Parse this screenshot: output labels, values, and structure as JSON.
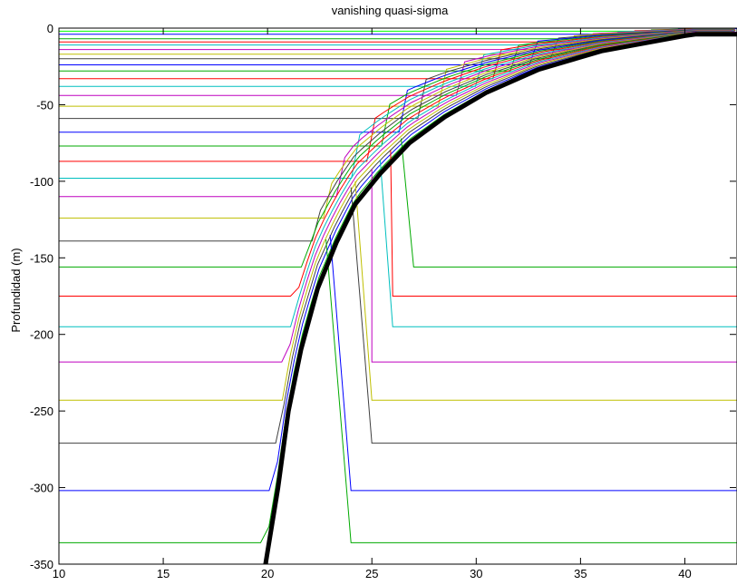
{
  "chart_data": {
    "type": "line",
    "title": "vanishing quasi-sigma",
    "xlabel": "",
    "ylabel": "Profundidad (m)",
    "xlim": [
      10,
      42.5
    ],
    "ylim": [
      -350,
      0
    ],
    "x_ticks": [
      10,
      15,
      20,
      25,
      30,
      35,
      40
    ],
    "y_ticks": [
      0,
      -50,
      -100,
      -150,
      -200,
      -250,
      -300,
      -350
    ],
    "grid": false,
    "bathymetry": {
      "color": "#000000",
      "x": [
        19.9,
        20.5,
        21.0,
        21.6,
        22.4,
        23.3,
        24.2,
        25.4,
        26.8,
        28.5,
        30.5,
        33.0,
        36.0,
        40.0,
        40.5,
        42.5
      ],
      "y": [
        -350,
        -300,
        -250,
        -210,
        -170,
        -140,
        -115,
        -95,
        -75,
        -58,
        -42,
        -27,
        -15,
        -5,
        -4,
        -4
      ]
    },
    "series": [
      {
        "color": "#ff00ff",
        "values": [
          0,
          0,
          -1.5,
          -2,
          -2
        ]
      },
      {
        "color": "#00ff00",
        "values": [
          -2,
          -2,
          -3,
          -3.4,
          -4
        ]
      },
      {
        "color": "#0000ff",
        "values": [
          -4,
          -4,
          -4.6,
          -4.8,
          -4.8
        ]
      },
      {
        "color": "#00aa00",
        "values": [
          -7,
          -7,
          -6.5,
          -6.5,
          -6.5
        ]
      },
      {
        "color": "#ff0000",
        "values": [
          -9,
          -9,
          -8.2,
          -8.2,
          -8.2
        ]
      },
      {
        "color": "#00bfbf",
        "values": [
          -11,
          -11,
          -10,
          -10,
          -10
        ]
      },
      {
        "color": "#bf00bf",
        "values": [
          -14,
          -14,
          -12,
          -12,
          -12
        ]
      },
      {
        "color": "#bfbf00",
        "values": [
          -17,
          -17,
          -14,
          -14,
          -14
        ]
      },
      {
        "color": "#404040",
        "values": [
          -20,
          -20,
          -16,
          -16,
          -16
        ]
      },
      {
        "color": "#0000ff",
        "values": [
          -24,
          -24,
          -18,
          -18,
          -18
        ]
      },
      {
        "color": "#00aa00",
        "values": [
          -28,
          -28,
          -20,
          -20,
          -20
        ]
      },
      {
        "color": "#ff0000",
        "values": [
          -33,
          -33,
          -22,
          -22,
          -22
        ]
      },
      {
        "color": "#00bfbf",
        "values": [
          -38,
          -38,
          -24,
          -24,
          -24
        ]
      },
      {
        "color": "#bf00bf",
        "values": [
          -44,
          -44,
          -26,
          -26,
          -26
        ]
      },
      {
        "color": "#bfbf00",
        "values": [
          -51,
          -51,
          -29,
          -29,
          -29
        ]
      },
      {
        "color": "#404040",
        "values": [
          -59,
          -59,
          -32,
          -32,
          -32
        ]
      },
      {
        "color": "#0000ff",
        "values": [
          -68,
          -68,
          -35,
          -35,
          -35
        ]
      },
      {
        "color": "#00aa00",
        "values": [
          -77,
          -77,
          -38,
          -38,
          -38
        ]
      },
      {
        "color": "#ff0000",
        "values": [
          -87,
          -87,
          -42,
          -42,
          -42
        ]
      },
      {
        "color": "#00bfbf",
        "values": [
          -98,
          -98,
          -46,
          -46,
          -46
        ]
      },
      {
        "color": "#bf00bf",
        "values": [
          -110,
          -110,
          -50,
          -50,
          -50
        ]
      },
      {
        "color": "#bfbf00",
        "values": [
          -124,
          -124,
          -55,
          -55,
          -55
        ]
      },
      {
        "color": "#404040",
        "values": [
          -139,
          -139,
          -60,
          -60,
          -60
        ]
      },
      {
        "color": "#00aa00",
        "values": [
          -156,
          -156,
          -65,
          -65,
          -65
        ]
      },
      {
        "color": "#ff0000",
        "values": [
          -175,
          -175,
          -70,
          -70,
          -70
        ]
      },
      {
        "color": "#00bfbf",
        "values": [
          -195,
          -195,
          -75,
          -75,
          -75
        ]
      },
      {
        "color": "#bf00bf",
        "values": [
          -218,
          -218,
          -80,
          -80,
          -80
        ]
      },
      {
        "color": "#bfbf00",
        "values": [
          -243,
          -243,
          -85,
          -85,
          -85
        ]
      },
      {
        "color": "#404040",
        "values": [
          -271,
          -271,
          -90,
          -90,
          -90
        ]
      },
      {
        "color": "#0000ff",
        "values": [
          -302,
          -302,
          -95,
          -95,
          -95
        ]
      },
      {
        "color": "#00aa00",
        "values": [
          -336,
          -336,
          -100,
          -100,
          -100
        ]
      }
    ],
    "right_branches": [
      {
        "color": "#00aa00",
        "x": [
          26.4,
          27.0,
          42.5
        ],
        "y": [
          -72,
          -156,
          -156
        ]
      },
      {
        "color": "#ff0000",
        "x": [
          25.9,
          26.0,
          42.5
        ],
        "y": [
          -80,
          -175,
          -175
        ]
      },
      {
        "color": "#00bfbf",
        "x": [
          25.4,
          26.0,
          42.5
        ],
        "y": [
          -86,
          -195,
          -195
        ]
      },
      {
        "color": "#bf00bf",
        "x": [
          25.0,
          25.0,
          42.5
        ],
        "y": [
          -92,
          -218,
          -218
        ]
      },
      {
        "color": "#bfbf00",
        "x": [
          24.2,
          25.0,
          42.5
        ],
        "y": [
          -100,
          -243,
          -243
        ]
      },
      {
        "color": "#404040",
        "x": [
          24.0,
          25.0,
          42.5
        ],
        "y": [
          -104,
          -271,
          -271
        ]
      },
      {
        "color": "#0000ff",
        "x": [
          23.0,
          24.0,
          42.5
        ],
        "y": [
          -135,
          -302,
          -302
        ]
      },
      {
        "color": "#00aa00",
        "x": [
          22.8,
          24.0,
          42.5
        ],
        "y": [
          -138,
          -336,
          -336
        ]
      }
    ]
  }
}
